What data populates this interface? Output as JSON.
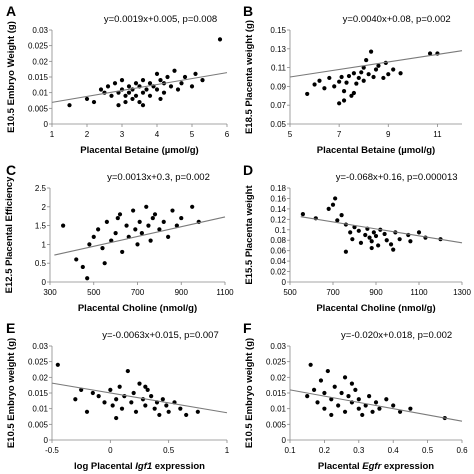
{
  "chart_data": [
    {
      "panel": "A",
      "type": "scatter",
      "equation": "y=0.0019x+0.005, p=0.008",
      "ylabel": "E10.5 Embryo Weight (g)",
      "xlabel": [
        {
          "t": "Placental Betaine (µmol/g)",
          "i": false
        }
      ],
      "xlim": [
        1,
        6
      ],
      "ylim": [
        0,
        0.03
      ],
      "xticks": [
        "1",
        "2",
        "3",
        "4",
        "5",
        "6"
      ],
      "xtickvals": [
        1,
        2,
        3,
        4,
        5,
        6
      ],
      "yticks": [
        "0",
        "0.005",
        "0.01",
        "0.015",
        "0.02",
        "0.025",
        "0.03"
      ],
      "ytickvals": [
        0,
        0.005,
        0.01,
        0.015,
        0.02,
        0.025,
        0.03
      ],
      "fit": {
        "slope": 0.0019,
        "intercept": 0.005
      },
      "points": [
        [
          1.5,
          0.006
        ],
        [
          2.0,
          0.008
        ],
        [
          2.2,
          0.007
        ],
        [
          2.4,
          0.011
        ],
        [
          2.5,
          0.01
        ],
        [
          2.6,
          0.012
        ],
        [
          2.7,
          0.009
        ],
        [
          2.8,
          0.013
        ],
        [
          2.9,
          0.01
        ],
        [
          3.0,
          0.014
        ],
        [
          3.0,
          0.011
        ],
        [
          3.1,
          0.007
        ],
        [
          3.1,
          0.009
        ],
        [
          3.2,
          0.012
        ],
        [
          3.2,
          0.01
        ],
        [
          3.3,
          0.008
        ],
        [
          3.3,
          0.011
        ],
        [
          3.4,
          0.013
        ],
        [
          3.4,
          0.009
        ],
        [
          3.5,
          0.012
        ],
        [
          3.5,
          0.007
        ],
        [
          3.6,
          0.01
        ],
        [
          3.6,
          0.014
        ],
        [
          3.7,
          0.011
        ],
        [
          3.8,
          0.013
        ],
        [
          3.8,
          0.009
        ],
        [
          3.9,
          0.012
        ],
        [
          4.0,
          0.016
        ],
        [
          4.0,
          0.011
        ],
        [
          4.1,
          0.014
        ],
        [
          4.2,
          0.01
        ],
        [
          4.2,
          0.013
        ],
        [
          4.3,
          0.015
        ],
        [
          4.4,
          0.012
        ],
        [
          4.5,
          0.017
        ],
        [
          4.6,
          0.011
        ],
        [
          4.7,
          0.013
        ],
        [
          4.8,
          0.015
        ],
        [
          5.0,
          0.012
        ],
        [
          5.1,
          0.016
        ],
        [
          5.3,
          0.014
        ],
        [
          5.8,
          0.027
        ],
        [
          2.9,
          0.006
        ],
        [
          3.6,
          0.006
        ],
        [
          4.1,
          0.008
        ]
      ]
    },
    {
      "panel": "B",
      "type": "scatter",
      "equation": "y=0.0040x+0.08, p=0.002",
      "ylabel": "E18.5 Placenta weight (g)",
      "xlabel": [
        {
          "t": "Placental Betaine (µmol/g)",
          "i": false
        }
      ],
      "xlim": [
        5,
        12
      ],
      "ylim": [
        0.05,
        0.15
      ],
      "xticks": [
        "5",
        "7",
        "9",
        "11"
      ],
      "xtickvals": [
        5,
        7,
        9,
        11
      ],
      "yticks": [
        "0.05",
        "0.07",
        "0.09",
        "0.11",
        "0.13",
        "0.15"
      ],
      "ytickvals": [
        0.05,
        0.07,
        0.09,
        0.11,
        0.13,
        0.15
      ],
      "fit": {
        "slope": 0.004,
        "intercept": 0.08
      },
      "points": [
        [
          5.7,
          0.082
        ],
        [
          6.0,
          0.092
        ],
        [
          6.2,
          0.096
        ],
        [
          6.4,
          0.088
        ],
        [
          6.6,
          0.099
        ],
        [
          6.8,
          0.09
        ],
        [
          7.0,
          0.095
        ],
        [
          7.0,
          0.072
        ],
        [
          7.1,
          0.1
        ],
        [
          7.2,
          0.085
        ],
        [
          7.3,
          0.094
        ],
        [
          7.4,
          0.101
        ],
        [
          7.5,
          0.08
        ],
        [
          7.6,
          0.104
        ],
        [
          7.7,
          0.093
        ],
        [
          7.8,
          0.099
        ],
        [
          7.9,
          0.105
        ],
        [
          8.0,
          0.11
        ],
        [
          8.0,
          0.096
        ],
        [
          8.1,
          0.118
        ],
        [
          8.2,
          0.103
        ],
        [
          8.3,
          0.127
        ],
        [
          8.4,
          0.1
        ],
        [
          8.5,
          0.108
        ],
        [
          8.6,
          0.112
        ],
        [
          8.8,
          0.099
        ],
        [
          8.9,
          0.115
        ],
        [
          9.0,
          0.103
        ],
        [
          9.2,
          0.108
        ],
        [
          9.5,
          0.104
        ],
        [
          10.7,
          0.125
        ],
        [
          11.0,
          0.125
        ],
        [
          7.2,
          0.075
        ],
        [
          7.6,
          0.083
        ]
      ]
    },
    {
      "panel": "C",
      "type": "scatter",
      "equation": "y=0.0013x+0.3, p=0.002",
      "ylabel": "E12.5 Placental Efficiency",
      "xlabel": [
        {
          "t": "Placental Choline (nmol/g)",
          "i": false
        }
      ],
      "xlim": [
        300,
        1100
      ],
      "ylim": [
        0,
        2.5
      ],
      "xticks": [
        "300",
        "500",
        "700",
        "900",
        "1100"
      ],
      "xtickvals": [
        300,
        500,
        700,
        900,
        1100
      ],
      "yticks": [
        "0",
        "0.5",
        "1",
        "1.5",
        "2",
        "2.5"
      ],
      "ytickvals": [
        0,
        0.5,
        1,
        1.5,
        2,
        2.5
      ],
      "fit": {
        "slope": 0.0013,
        "intercept": 0.3
      },
      "points": [
        [
          360,
          1.5
        ],
        [
          420,
          0.6
        ],
        [
          450,
          0.4
        ],
        [
          470,
          0.1
        ],
        [
          480,
          1.0
        ],
        [
          500,
          1.2
        ],
        [
          520,
          1.4
        ],
        [
          540,
          0.9
        ],
        [
          560,
          1.6
        ],
        [
          580,
          1.1
        ],
        [
          600,
          1.3
        ],
        [
          610,
          1.7
        ],
        [
          630,
          0.8
        ],
        [
          650,
          1.5
        ],
        [
          660,
          1.2
        ],
        [
          680,
          1.9
        ],
        [
          690,
          1.4
        ],
        [
          700,
          1.0
        ],
        [
          710,
          1.6
        ],
        [
          720,
          1.3
        ],
        [
          740,
          2.0
        ],
        [
          750,
          1.5
        ],
        [
          760,
          1.1
        ],
        [
          780,
          1.8
        ],
        [
          800,
          1.4
        ],
        [
          820,
          1.6
        ],
        [
          840,
          1.2
        ],
        [
          860,
          1.9
        ],
        [
          880,
          1.5
        ],
        [
          900,
          1.7
        ],
        [
          950,
          2.0
        ],
        [
          980,
          1.6
        ],
        [
          550,
          0.5
        ],
        [
          620,
          1.8
        ],
        [
          770,
          1.7
        ]
      ]
    },
    {
      "panel": "D",
      "type": "scatter",
      "equation": "y=-0.068x+0.16, p=0.000013",
      "ylabel": "E15.5 Placenta weight",
      "xlabel": [
        {
          "t": "Placental Choline (nmol/g)",
          "i": false
        }
      ],
      "xlim": [
        500,
        1300
      ],
      "ylim": [
        0,
        0.18
      ],
      "xticks": [
        "500",
        "700",
        "900",
        "1100",
        "1300"
      ],
      "xtickvals": [
        500,
        700,
        900,
        1100,
        1300
      ],
      "yticks": [
        "0",
        "0.02",
        "0.04",
        "0.06",
        "0.08",
        "0.1",
        "0.12",
        "0.14",
        "0.16",
        "0.18"
      ],
      "ytickvals": [
        0,
        0.02,
        0.04,
        0.06,
        0.08,
        0.1,
        0.12,
        0.14,
        0.16,
        0.18
      ],
      "fit": {
        "x": [
          550,
          1300
        ],
        "y": [
          0.125,
          0.075
        ]
      },
      "points": [
        [
          560,
          0.13
        ],
        [
          620,
          0.122
        ],
        [
          680,
          0.14
        ],
        [
          700,
          0.148
        ],
        [
          710,
          0.16
        ],
        [
          720,
          0.118
        ],
        [
          740,
          0.128
        ],
        [
          760,
          0.11
        ],
        [
          780,
          0.095
        ],
        [
          790,
          0.082
        ],
        [
          800,
          0.105
        ],
        [
          820,
          0.098
        ],
        [
          830,
          0.075
        ],
        [
          850,
          0.09
        ],
        [
          860,
          0.102
        ],
        [
          870,
          0.085
        ],
        [
          880,
          0.078
        ],
        [
          890,
          0.095
        ],
        [
          900,
          0.088
        ],
        [
          910,
          0.07
        ],
        [
          920,
          0.1
        ],
        [
          940,
          0.092
        ],
        [
          950,
          0.08
        ],
        [
          970,
          0.072
        ],
        [
          990,
          0.095
        ],
        [
          1010,
          0.082
        ],
        [
          1050,
          0.09
        ],
        [
          1100,
          0.095
        ],
        [
          1130,
          0.085
        ],
        [
          1200,
          0.082
        ],
        [
          760,
          0.058
        ],
        [
          880,
          0.065
        ],
        [
          980,
          0.062
        ],
        [
          1060,
          0.078
        ]
      ]
    },
    {
      "panel": "E",
      "type": "scatter",
      "equation": "y=-0.0063x+0.015, p=0.007",
      "ylabel": "E10.5 Embryo weight (g)",
      "xlabel": [
        {
          "t": "log Placental ",
          "i": false
        },
        {
          "t": "Igf1",
          "i": true
        },
        {
          "t": " expression",
          "i": false
        }
      ],
      "xlim": [
        -0.5,
        1
      ],
      "ylim": [
        0,
        0.03
      ],
      "xticks": [
        "-0.5",
        "0",
        "0.5",
        "1"
      ],
      "xtickvals": [
        -0.5,
        0,
        0.5,
        1
      ],
      "yticks": [
        "0",
        "0.005",
        "0.01",
        "0.015",
        "0.02",
        "0.025",
        "0.03"
      ],
      "ytickvals": [
        0,
        0.005,
        0.01,
        0.015,
        0.02,
        0.025,
        0.03
      ],
      "fit": {
        "slope": -0.0063,
        "intercept": 0.015
      },
      "points": [
        [
          -0.45,
          0.024
        ],
        [
          -0.3,
          0.013
        ],
        [
          -0.2,
          0.009
        ],
        [
          -0.15,
          0.015
        ],
        [
          -0.1,
          0.014
        ],
        [
          -0.05,
          0.012
        ],
        [
          0.0,
          0.016
        ],
        [
          0.02,
          0.011
        ],
        [
          0.05,
          0.013
        ],
        [
          0.08,
          0.017
        ],
        [
          0.1,
          0.01
        ],
        [
          0.12,
          0.014
        ],
        [
          0.15,
          0.022
        ],
        [
          0.18,
          0.012
        ],
        [
          0.2,
          0.015
        ],
        [
          0.22,
          0.009
        ],
        [
          0.25,
          0.018
        ],
        [
          0.28,
          0.013
        ],
        [
          0.3,
          0.011
        ],
        [
          0.32,
          0.016
        ],
        [
          0.35,
          0.014
        ],
        [
          0.38,
          0.01
        ],
        [
          0.4,
          0.012
        ],
        [
          0.42,
          0.008
        ],
        [
          0.45,
          0.013
        ],
        [
          0.48,
          0.011
        ],
        [
          0.5,
          0.009
        ],
        [
          0.55,
          0.012
        ],
        [
          0.6,
          0.01
        ],
        [
          0.65,
          0.008
        ],
        [
          0.75,
          0.009
        ],
        [
          -0.25,
          0.016
        ],
        [
          0.05,
          0.007
        ],
        [
          0.3,
          0.017
        ]
      ]
    },
    {
      "panel": "F",
      "type": "scatter",
      "equation": "y=-0.020x+0.018, p=0.002",
      "ylabel": "E10.5 Embryo weight (g)",
      "xlabel": [
        {
          "t": "Placental ",
          "i": false
        },
        {
          "t": "Egfr",
          "i": true
        },
        {
          "t": " expression",
          "i": false
        }
      ],
      "xlim": [
        0.1,
        0.6
      ],
      "ylim": [
        0,
        0.03
      ],
      "xticks": [
        "0.1",
        "0.2",
        "0.3",
        "0.4",
        "0.5",
        "0.6"
      ],
      "xtickvals": [
        0.1,
        0.2,
        0.3,
        0.4,
        0.5,
        0.6
      ],
      "yticks": [
        "0",
        "0.005",
        "0.01",
        "0.015",
        "0.02",
        "0.025",
        "0.03"
      ],
      "ytickvals": [
        0,
        0.005,
        0.01,
        0.015,
        0.02,
        0.025,
        0.03
      ],
      "fit": {
        "slope": -0.02,
        "intercept": 0.018
      },
      "points": [
        [
          0.15,
          0.014
        ],
        [
          0.16,
          0.024
        ],
        [
          0.17,
          0.016
        ],
        [
          0.18,
          0.012
        ],
        [
          0.19,
          0.019
        ],
        [
          0.2,
          0.015
        ],
        [
          0.2,
          0.01
        ],
        [
          0.21,
          0.022
        ],
        [
          0.22,
          0.013
        ],
        [
          0.23,
          0.017
        ],
        [
          0.24,
          0.011
        ],
        [
          0.25,
          0.015
        ],
        [
          0.26,
          0.02
        ],
        [
          0.26,
          0.009
        ],
        [
          0.27,
          0.014
        ],
        [
          0.28,
          0.012
        ],
        [
          0.29,
          0.016
        ],
        [
          0.3,
          0.01
        ],
        [
          0.3,
          0.013
        ],
        [
          0.31,
          0.008
        ],
        [
          0.32,
          0.011
        ],
        [
          0.33,
          0.014
        ],
        [
          0.34,
          0.009
        ],
        [
          0.35,
          0.012
        ],
        [
          0.36,
          0.01
        ],
        [
          0.38,
          0.013
        ],
        [
          0.4,
          0.011
        ],
        [
          0.42,
          0.009
        ],
        [
          0.45,
          0.01
        ],
        [
          0.55,
          0.007
        ],
        [
          0.22,
          0.008
        ],
        [
          0.28,
          0.018
        ]
      ]
    }
  ]
}
